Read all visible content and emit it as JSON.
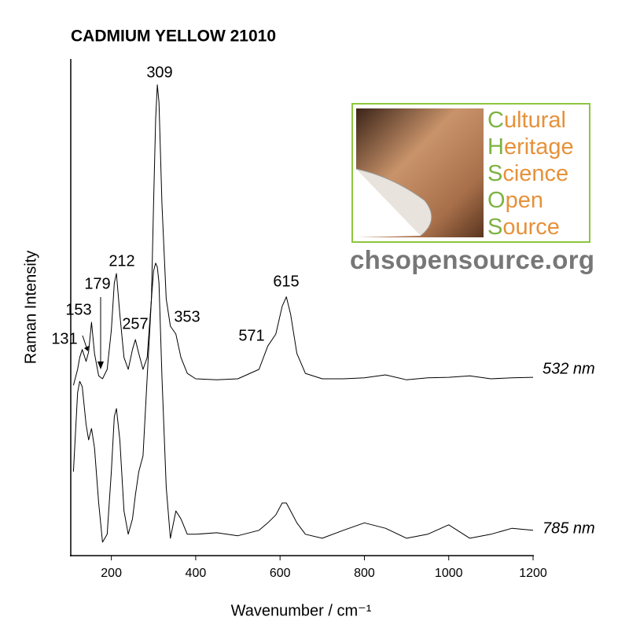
{
  "chart_data": {
    "type": "line",
    "title": "CADMIUM YELLOW 21010",
    "x_label": "Wavenumber / cm⁻¹",
    "y_label": "Raman Intensity",
    "x": [
      110,
      120,
      125,
      131,
      140,
      146,
      153,
      160,
      170,
      179,
      190,
      200,
      207,
      212,
      220,
      230,
      240,
      250,
      257,
      265,
      275,
      285,
      295,
      300,
      305,
      309,
      313,
      320,
      330,
      340,
      353,
      365,
      380,
      400,
      450,
      500,
      550,
      571,
      590,
      605,
      615,
      625,
      640,
      660,
      700,
      750,
      800,
      850,
      900,
      950,
      1000,
      1050,
      1100,
      1150,
      1200
    ],
    "series": [
      {
        "name": "532 nm",
        "color": "#000000",
        "values": [
          34.3,
          37.5,
          39.9,
          41.5,
          39.1,
          41.0,
          47.0,
          40.7,
          36.2,
          35.6,
          37.5,
          45.4,
          54.9,
          56.8,
          48.6,
          39.9,
          37.5,
          41.5,
          43.5,
          40.7,
          37.5,
          39.9,
          51.7,
          70.7,
          88.1,
          94.8,
          91.3,
          70.7,
          51.7,
          46.2,
          44.6,
          39.9,
          36.7,
          35.6,
          35.4,
          35.6,
          37.5,
          42.2,
          44.6,
          50.2,
          52.1,
          48.6,
          40.7,
          36.7,
          35.6,
          35.6,
          35.8,
          36.4,
          35.4,
          35.8,
          35.9,
          36.2,
          35.6,
          35.8,
          35.9
        ]
      },
      {
        "name": "785 nm",
        "color": "#000000",
        "values": [
          16.9,
          32.8,
          35.1,
          34.0,
          26.4,
          23.3,
          25.6,
          21.7,
          10.6,
          2.7,
          4.3,
          16.9,
          28.0,
          29.6,
          23.3,
          9.0,
          4.3,
          7.4,
          12.2,
          16.9,
          20.1,
          35.9,
          51.7,
          57.3,
          58.9,
          58.1,
          54.9,
          35.9,
          13.8,
          3.5,
          9.0,
          7.4,
          4.3,
          4.3,
          4.6,
          4.0,
          5.1,
          6.6,
          8.2,
          10.6,
          10.6,
          9.0,
          6.6,
          4.3,
          3.5,
          5.1,
          6.6,
          5.5,
          3.5,
          4.3,
          6.2,
          3.5,
          4.3,
          5.5,
          5.1
        ]
      }
    ],
    "annotations": [
      "131",
      "153",
      "179",
      "212",
      "257",
      "309",
      "353",
      "571",
      "615"
    ],
    "xlim": [
      100,
      1200
    ],
    "xticks": [
      200,
      400,
      600,
      800,
      1000,
      1200
    ],
    "ylim": [
      0,
      100
    ]
  },
  "logo": {
    "words": [
      "Cultural",
      "Heritage",
      "Science",
      "Open",
      "Source"
    ],
    "url": "chsopensource.org"
  }
}
